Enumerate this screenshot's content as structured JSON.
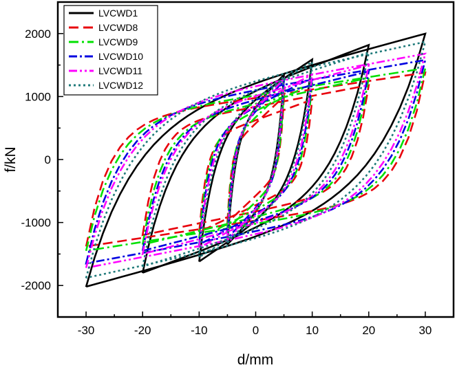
{
  "chart_data": {
    "type": "line",
    "xlabel": "d/mm",
    "ylabel": "f/kN",
    "xlim": [
      -35,
      35
    ],
    "ylim": [
      -2500,
      2500
    ],
    "xticks": [
      -30,
      -20,
      -10,
      0,
      10,
      20,
      30
    ],
    "yticks": [
      -2000,
      -1000,
      0,
      1000,
      2000
    ],
    "xtick_labels": [
      "-30",
      "-20",
      "-10",
      "0",
      "10",
      "20",
      "30"
    ],
    "ytick_labels": [
      "-2000",
      "-1000",
      "0",
      "1000",
      "2000"
    ],
    "legend_position": "top-left",
    "grid": false,
    "series": [
      {
        "name": "LVCWD1",
        "color": "#000000",
        "dash": "solid",
        "loops": [
          {
            "amp": 5,
            "k": 1.2,
            "top_start": 400,
            "top_end": 1350,
            "bot_start": -400,
            "bot_end": -1350
          },
          {
            "amp": 10,
            "k": 1.2,
            "top_start": 420,
            "top_end": 1590,
            "bot_start": -420,
            "bot_end": -1620
          },
          {
            "amp": 20,
            "k": 1.2,
            "top_start": 480,
            "top_end": 1820,
            "bot_start": -480,
            "bot_end": -1800
          },
          {
            "amp": 30,
            "k": 1.2,
            "top_start": 560,
            "top_end": 2000,
            "bot_start": -560,
            "bot_end": -2020
          }
        ]
      },
      {
        "name": "LVCWD8",
        "color": "#e8000b",
        "dash": "14,7",
        "loops": [
          {
            "amp": 5,
            "k": 2.4,
            "top_start": 150,
            "top_end": 1000,
            "bot_start": -150,
            "bot_end": -1000
          },
          {
            "amp": 10,
            "k": 2.4,
            "top_start": 300,
            "top_end": 950,
            "bot_start": -300,
            "bot_end": -1150
          },
          {
            "amp": 20,
            "k": 2.4,
            "top_start": 500,
            "top_end": 1180,
            "bot_start": -450,
            "bot_end": -1200
          },
          {
            "amp": 30,
            "k": 2.4,
            "top_start": 580,
            "top_end": 1380,
            "bot_start": -560,
            "bot_end": -1380
          }
        ]
      },
      {
        "name": "LVCWD9",
        "color": "#00e000",
        "dash": "14,5,3,5",
        "loops": [
          {
            "amp": 5,
            "k": 2.0,
            "top_start": 250,
            "top_end": 1100,
            "bot_start": -250,
            "bot_end": -1100
          },
          {
            "amp": 10,
            "k": 2.0,
            "top_start": 350,
            "top_end": 1200,
            "bot_start": -350,
            "bot_end": -1250
          },
          {
            "amp": 20,
            "k": 2.0,
            "top_start": 480,
            "top_end": 1300,
            "bot_start": -480,
            "bot_end": -1350
          },
          {
            "amp": 30,
            "k": 2.0,
            "top_start": 600,
            "top_end": 1450,
            "bot_start": -600,
            "bot_end": -1450
          }
        ]
      },
      {
        "name": "LVCWD10",
        "color": "#0000e0",
        "dash": "12,4,3,4",
        "loops": [
          {
            "amp": 5,
            "k": 1.7,
            "top_start": 300,
            "top_end": 1250,
            "bot_start": -300,
            "bot_end": -1250
          },
          {
            "amp": 10,
            "k": 1.7,
            "top_start": 400,
            "top_end": 1300,
            "bot_start": -400,
            "bot_end": -1350
          },
          {
            "amp": 20,
            "k": 1.7,
            "top_start": 520,
            "top_end": 1400,
            "bot_start": -520,
            "bot_end": -1450
          },
          {
            "amp": 30,
            "k": 1.7,
            "top_start": 650,
            "top_end": 1580,
            "bot_start": -650,
            "bot_end": -1650
          }
        ]
      },
      {
        "name": "LVCWD11",
        "color": "#ff00ff",
        "dash": "12,4,3,4,3,4",
        "loops": [
          {
            "amp": 5,
            "k": 1.5,
            "top_start": 330,
            "top_end": 1280,
            "bot_start": -330,
            "bot_end": -1280
          },
          {
            "amp": 10,
            "k": 1.5,
            "top_start": 420,
            "top_end": 1350,
            "bot_start": -420,
            "bot_end": -1400
          },
          {
            "amp": 20,
            "k": 1.5,
            "top_start": 560,
            "top_end": 1500,
            "bot_start": -560,
            "bot_end": -1500
          },
          {
            "amp": 30,
            "k": 1.5,
            "top_start": 700,
            "top_end": 1680,
            "bot_start": -700,
            "bot_end": -1720
          }
        ]
      },
      {
        "name": "LVCWD12",
        "color": "#1f7a7a",
        "dash": "3,4",
        "loops": [
          {
            "amp": 5,
            "k": 1.3,
            "top_start": 380,
            "top_end": 1320,
            "bot_start": -380,
            "bot_end": -1320
          },
          {
            "amp": 10,
            "k": 1.3,
            "top_start": 450,
            "top_end": 1550,
            "bot_start": -450,
            "bot_end": -1550
          },
          {
            "amp": 20,
            "k": 1.3,
            "top_start": 580,
            "top_end": 1700,
            "bot_start": -580,
            "bot_end": -1700
          },
          {
            "amp": 30,
            "k": 1.3,
            "top_start": 720,
            "top_end": 1870,
            "bot_start": -720,
            "bot_end": -1880
          }
        ]
      }
    ]
  }
}
